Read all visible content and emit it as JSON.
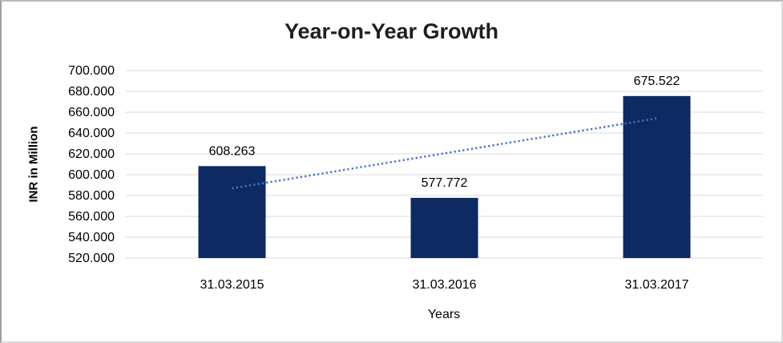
{
  "frame": {
    "background": "#ffffff",
    "border_color": "#c6c6c6"
  },
  "chart_data": {
    "type": "bar",
    "title": "Year-on-Year Growth",
    "xlabel": "Years",
    "ylabel": "INR in Million",
    "categories": [
      "31.03.2015",
      "31.03.2016",
      "31.03.2017"
    ],
    "values": [
      608.263,
      577.772,
      675.522
    ],
    "data_labels": [
      "608.263",
      "577.772",
      "675.522"
    ],
    "ylim": [
      520,
      700
    ],
    "ytick_step": 20,
    "ytick_labels": [
      "520.000",
      "540.000",
      "560.000",
      "580.000",
      "600.000",
      "620.000",
      "640.000",
      "660.000",
      "680.000",
      "700.000"
    ],
    "grid": true,
    "legend": false,
    "bar_color": "#0e2a63",
    "gridline_color": "#d9d9d9",
    "trendline": {
      "type": "linear",
      "style": "dotted",
      "color": "#4472c4",
      "start_value": 586.9,
      "end_value": 654.1
    }
  }
}
